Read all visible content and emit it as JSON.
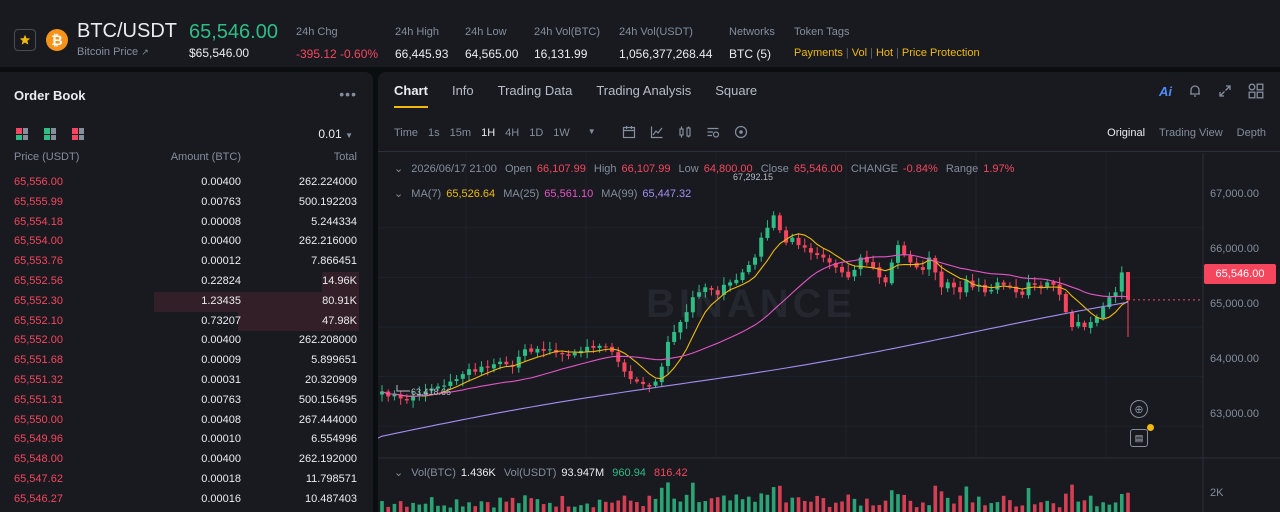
{
  "header": {
    "pair": "BTC/USDT",
    "subtitle": "Bitcoin Price",
    "last_price": "65,546.00",
    "last_price_usd": "$65,546.00",
    "stats": [
      {
        "label": "24h Chg",
        "value": "-395.12 -0.60%",
        "color": "#f6465d"
      },
      {
        "label": "24h High",
        "value": "66,445.93"
      },
      {
        "label": "24h Low",
        "value": "64,565.00"
      },
      {
        "label": "24h Vol(BTC)",
        "value": "16,131.99"
      },
      {
        "label": "24h Vol(USDT)",
        "value": "1,056,377,268.44"
      },
      {
        "label": "Networks",
        "value": "BTC (5)"
      }
    ],
    "token_tags_label": "Token Tags",
    "token_tags": [
      "Payments",
      "Vol",
      "Hot",
      "Price Protection"
    ]
  },
  "orderbook": {
    "title": "Order Book",
    "precision": "0.01",
    "col_price": "Price (USDT)",
    "col_amount": "Amount (BTC)",
    "col_total": "Total",
    "rows": [
      {
        "price": "65,556.00",
        "amount": "0.00400",
        "total": "262.224000",
        "depth": 0
      },
      {
        "price": "65,555.99",
        "amount": "0.00763",
        "total": "500.192203",
        "depth": 0
      },
      {
        "price": "65,554.18",
        "amount": "0.00008",
        "total": "5.244334",
        "depth": 0
      },
      {
        "price": "65,554.00",
        "amount": "0.00400",
        "total": "262.216000",
        "depth": 0
      },
      {
        "price": "65,553.76",
        "amount": "0.00012",
        "total": "7.866451",
        "depth": 0
      },
      {
        "price": "65,552.56",
        "amount": "0.22824",
        "total": "14.96K",
        "depth": 0.18
      },
      {
        "price": "65,552.30",
        "amount": "1.23435",
        "total": "80.91K",
        "depth": 1.0
      },
      {
        "price": "65,552.10",
        "amount": "0.73207",
        "total": "47.98K",
        "depth": 0.59
      },
      {
        "price": "65,552.00",
        "amount": "0.00400",
        "total": "262.208000",
        "depth": 0
      },
      {
        "price": "65,551.68",
        "amount": "0.00009",
        "total": "5.899651",
        "depth": 0
      },
      {
        "price": "65,551.32",
        "amount": "0.00031",
        "total": "20.320909",
        "depth": 0
      },
      {
        "price": "65,551.31",
        "amount": "0.00763",
        "total": "500.156495",
        "depth": 0
      },
      {
        "price": "65,550.00",
        "amount": "0.00408",
        "total": "267.444000",
        "depth": 0
      },
      {
        "price": "65,549.96",
        "amount": "0.00010",
        "total": "6.554996",
        "depth": 0
      },
      {
        "price": "65,548.00",
        "amount": "0.00400",
        "total": "262.192000",
        "depth": 0
      },
      {
        "price": "65,547.62",
        "amount": "0.00018",
        "total": "11.798571",
        "depth": 0
      },
      {
        "price": "65,546.27",
        "amount": "0.00016",
        "total": "10.487403",
        "depth": 0
      }
    ]
  },
  "chart_panel": {
    "tabs": [
      "Chart",
      "Info",
      "Trading Data",
      "Trading Analysis",
      "Square"
    ],
    "ai_label": "Ai",
    "timeframes": [
      "Time",
      "1s",
      "15m",
      "1H",
      "4H",
      "1D",
      "1W"
    ],
    "active_timeframe": "1H",
    "views": [
      "Original",
      "Trading View",
      "Depth"
    ],
    "active_view": "Original",
    "ohlc": {
      "date": "2026/06/17 21:00",
      "open_label": "Open",
      "open": "66,107.99",
      "high_label": "High",
      "high": "66,107.99",
      "low_label": "Low",
      "low": "64,800.00",
      "close_label": "Close",
      "close": "65,546.00",
      "change_label": "CHANGE",
      "change": "-0.84%",
      "range_label": "Range",
      "range": "1.97%"
    },
    "ma": {
      "ma7_label": "MA(7)",
      "ma7": "65,526.64",
      "ma25_label": "MA(25)",
      "ma25": "65,561.10",
      "ma99_label": "MA(99)",
      "ma99": "65,447.32"
    },
    "current_price_tag": "65,546.00",
    "high_marker": "67,292.15",
    "low_marker": "63,418.66",
    "watermark": "BINANCE",
    "price_axis": [
      "67,000.00",
      "66,000.00",
      "65,000.00",
      "64,000.00",
      "63,000.00"
    ],
    "volume": {
      "vol_btc_label": "Vol(BTC)",
      "vol_btc": "1.436K",
      "vol_usdt_label": "Vol(USDT)",
      "vol_usdt": "93.947M",
      "ma5": "960.94",
      "ma10": "816.42",
      "axis": "2K"
    },
    "colors": {
      "up": "#2ebd85",
      "down": "#f6465d",
      "ma7": "#f0b90b",
      "ma25": "#e255c4",
      "ma99": "#a48ef0",
      "accent": "#f0b90b"
    }
  },
  "chart_data": {
    "type": "candlestick",
    "interval": "1H",
    "ylim": [
      62400,
      67600
    ],
    "close": [
      63700,
      63600,
      63650,
      63560,
      63520,
      63600,
      63650,
      63700,
      63760,
      63800,
      63820,
      63900,
      63950,
      64050,
      64150,
      64100,
      64200,
      64180,
      64250,
      64300,
      64250,
      64200,
      64400,
      64550,
      64500,
      64560,
      64520,
      64550,
      64480,
      64450,
      64420,
      64480,
      64520,
      64600,
      64580,
      64620,
      64600,
      64500,
      64300,
      64100,
      63950,
      63900,
      63850,
      63800,
      63900,
      64200,
      64700,
      64900,
      65100,
      65300,
      65600,
      65700,
      65800,
      65750,
      65650,
      65850,
      65900,
      65950,
      66100,
      66250,
      66400,
      66800,
      67000,
      67250,
      66950,
      66700,
      66800,
      66650,
      66600,
      66500,
      66450,
      66400,
      66300,
      66200,
      66100,
      66000,
      66150,
      66400,
      66300,
      66200,
      66000,
      65900,
      66300,
      66650,
      66450,
      66300,
      66200,
      66150,
      66400,
      66100,
      65800,
      65900,
      65800,
      65700,
      65950,
      65800,
      65850,
      65700,
      65750,
      65900,
      65850,
      65800,
      65700,
      65650,
      65900,
      65850,
      65800,
      65900,
      65850,
      65650,
      65300,
      65000,
      65100,
      65000,
      65100,
      65200,
      65400,
      65600,
      65700,
      66100,
      65546
    ]
  }
}
